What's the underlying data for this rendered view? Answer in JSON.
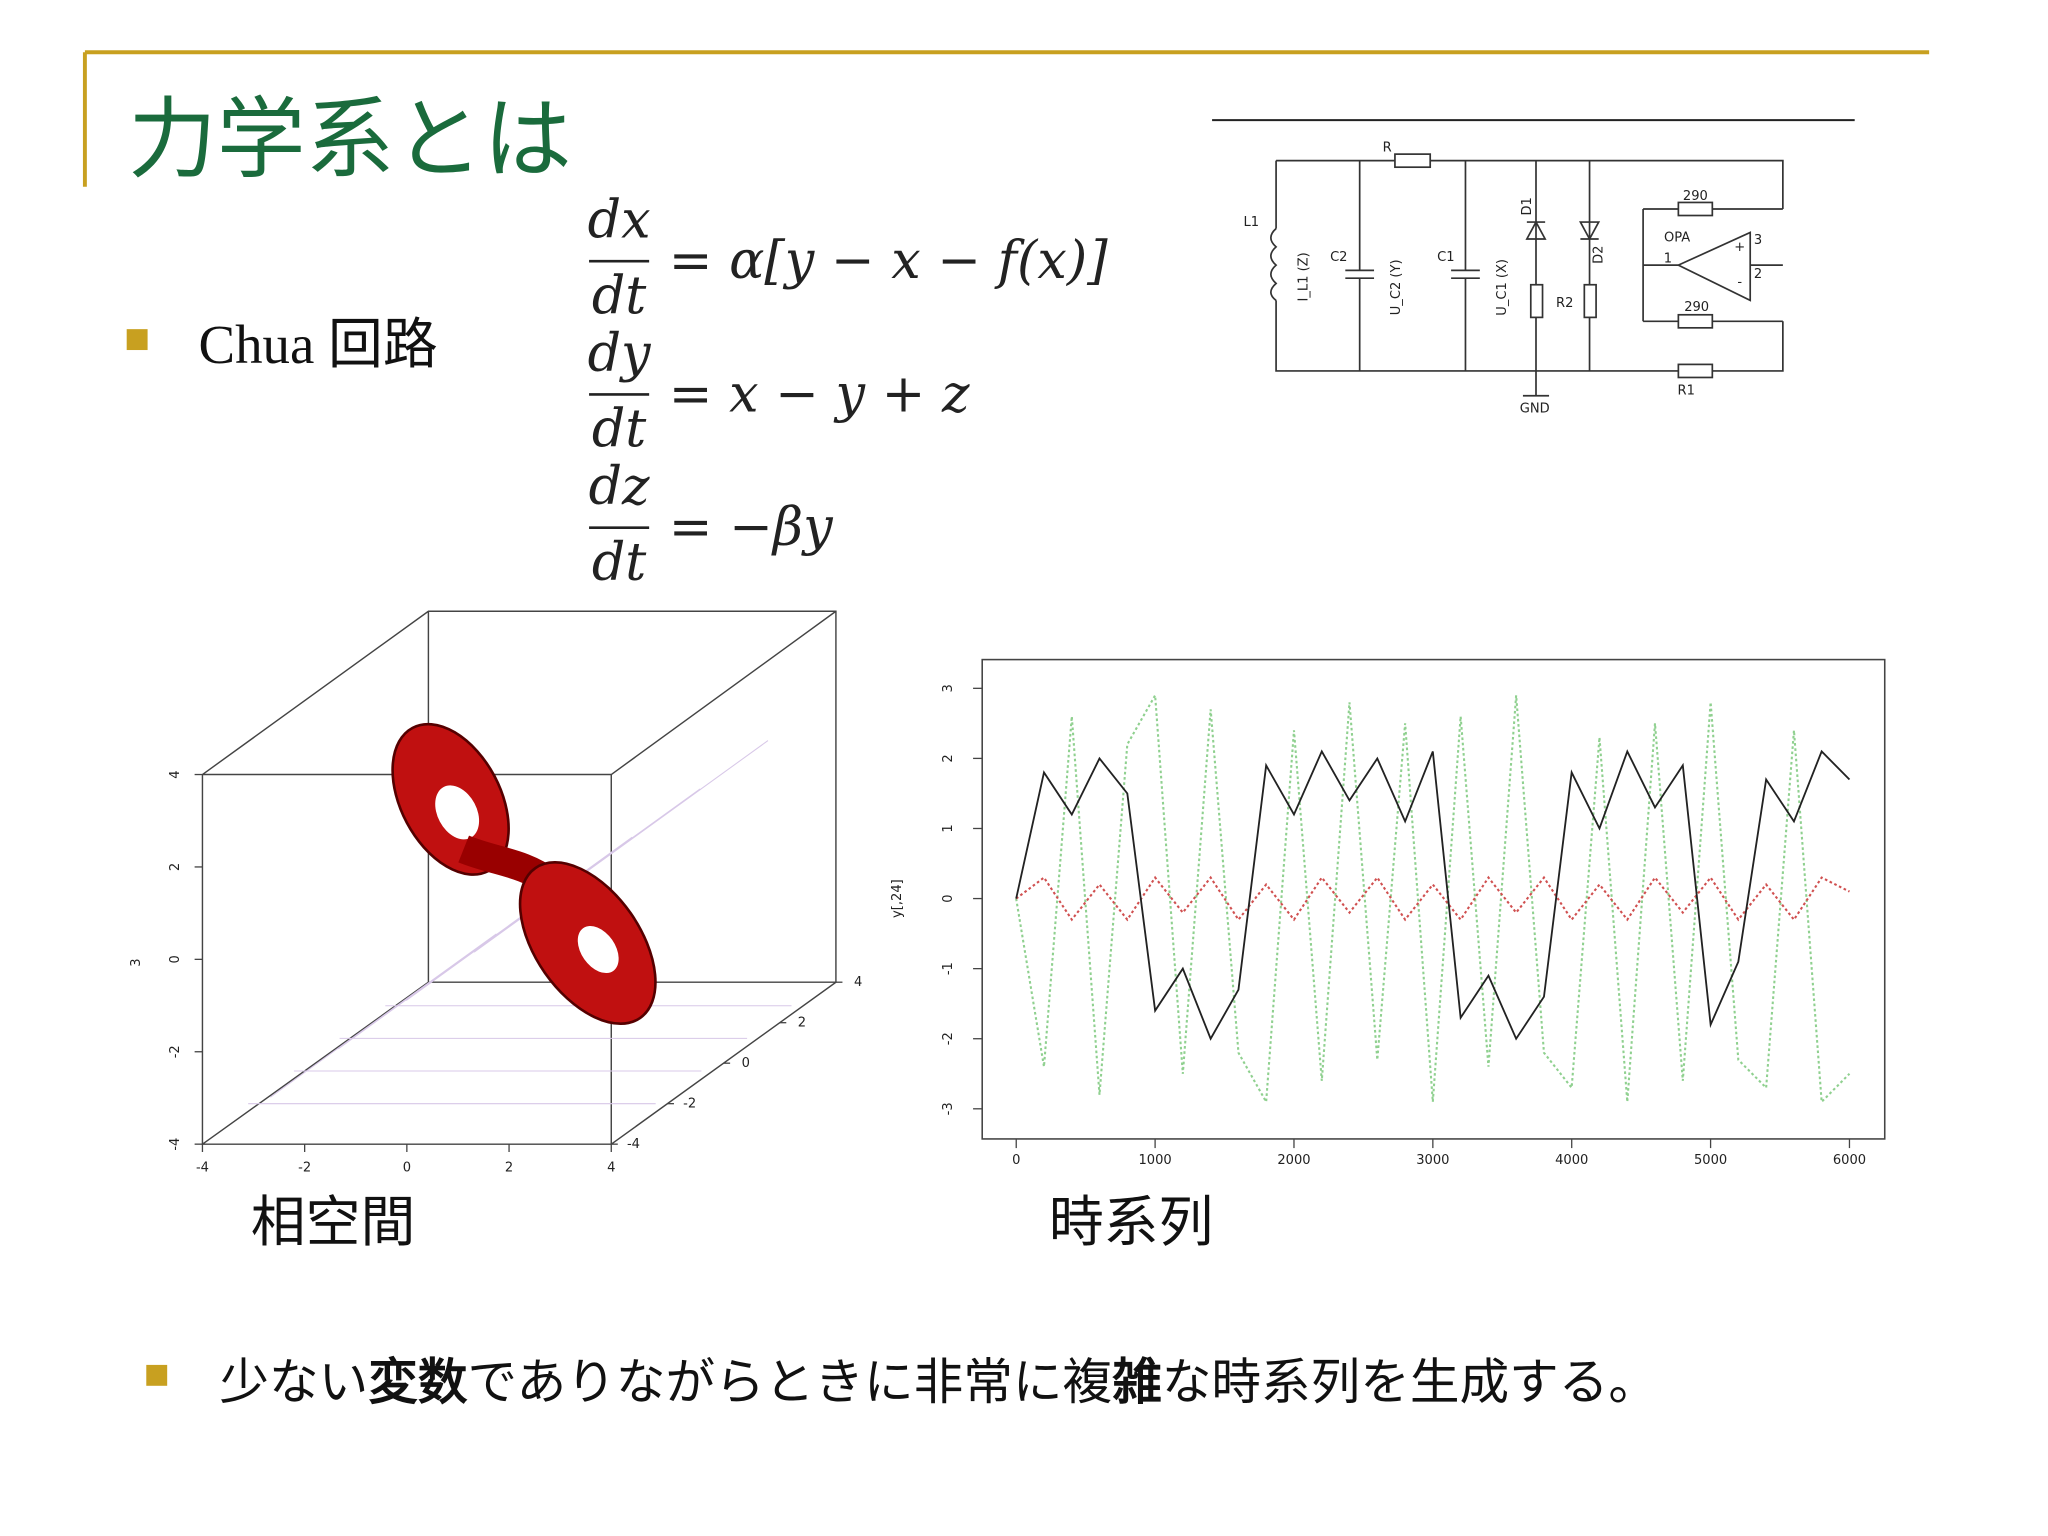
{
  "header": {
    "title": "力学系とは"
  },
  "bullets": [
    {
      "text": "Chua 回路"
    },
    {
      "runs": [
        {
          "text": "少ない",
          "bold": false
        },
        {
          "text": "変数",
          "bold": true
        },
        {
          "text": "でありながらときに非常に複",
          "bold": false
        },
        {
          "text": "雑",
          "bold": true
        },
        {
          "text": "な時系列を生成する。",
          "bold": false
        }
      ]
    }
  ],
  "equations": [
    {
      "numerator": "dx",
      "denominator": "dt",
      "rhs": "= α[y − x − f(x)]"
    },
    {
      "numerator": "dy",
      "denominator": "dt",
      "rhs": "= x − y + z"
    },
    {
      "numerator": "dz",
      "denominator": "dt",
      "rhs": "= −βy"
    }
  ],
  "circuit": {
    "labels": [
      "R",
      "L1",
      "C2",
      "C1",
      "D1",
      "D2",
      "R2",
      "OPA",
      "290",
      "290",
      "R1",
      "GND",
      "I_L1 (Z)",
      "U_C2 (Y)",
      "U_C1 (X)",
      "1",
      "2",
      "3",
      "+",
      "-"
    ]
  },
  "phase_space": {
    "caption": "相空間",
    "zlabel": "3",
    "xticks": [
      -4,
      -2,
      0,
      2,
      4
    ],
    "yticks": [
      -4,
      -2,
      0,
      2,
      4
    ],
    "zticks": [
      -4,
      -2,
      0,
      2,
      4
    ],
    "xlim": [
      -4,
      4
    ],
    "ylim": [
      -4,
      4
    ],
    "zlim": [
      -4,
      4
    ]
  },
  "time_series": {
    "caption": "時系列",
    "ylabel": "y[,24]",
    "xlim": [
      -245,
      6254
    ],
    "ylim": [
      -3.43,
      3.41
    ],
    "xticks": [
      0,
      1000,
      2000,
      3000,
      4000,
      5000,
      6000
    ],
    "yticks": [
      -3,
      -2,
      -1,
      0,
      1,
      2,
      3
    ],
    "x": [
      0,
      200,
      400,
      600,
      800,
      1000,
      1200,
      1400,
      1600,
      1800,
      2000,
      2200,
      2400,
      2600,
      2800,
      3000,
      3200,
      3400,
      3600,
      3800,
      4000,
      4200,
      4400,
      4600,
      4800,
      5000,
      5200,
      5400,
      5600,
      5800,
      6000
    ],
    "series": [
      {
        "color": "#8fd08f",
        "dash": true,
        "values": [
          0,
          -2.4,
          2.6,
          -2.8,
          2.2,
          2.9,
          -2.5,
          2.7,
          -2.2,
          -2.9,
          2.4,
          -2.6,
          2.8,
          -2.3,
          2.5,
          -2.9,
          2.6,
          -2.4,
          2.9,
          -2.2,
          -2.7,
          2.3,
          -2.9,
          2.5,
          -2.6,
          2.8,
          -2.3,
          -2.7,
          2.4,
          -2.9,
          -2.5
        ]
      },
      {
        "color": "#d05050",
        "dash": true,
        "values": [
          0,
          0.3,
          -0.3,
          0.2,
          -0.3,
          0.3,
          -0.2,
          0.3,
          -0.3,
          0.2,
          -0.3,
          0.3,
          -0.2,
          0.3,
          -0.3,
          0.2,
          -0.3,
          0.3,
          -0.2,
          0.3,
          -0.3,
          0.2,
          -0.3,
          0.3,
          -0.2,
          0.3,
          -0.3,
          0.2,
          -0.3,
          0.3,
          0.1
        ]
      },
      {
        "color": "#222222",
        "dash": false,
        "values": [
          0,
          1.8,
          1.2,
          2.0,
          1.5,
          -1.6,
          -1.0,
          -2.0,
          -1.3,
          1.9,
          1.2,
          2.1,
          1.4,
          2.0,
          1.1,
          2.1,
          -1.7,
          -1.1,
          -2.0,
          -1.4,
          1.8,
          1.0,
          2.1,
          1.3,
          1.9,
          -1.8,
          -0.9,
          1.7,
          1.1,
          2.1,
          1.7
        ]
      }
    ]
  }
}
